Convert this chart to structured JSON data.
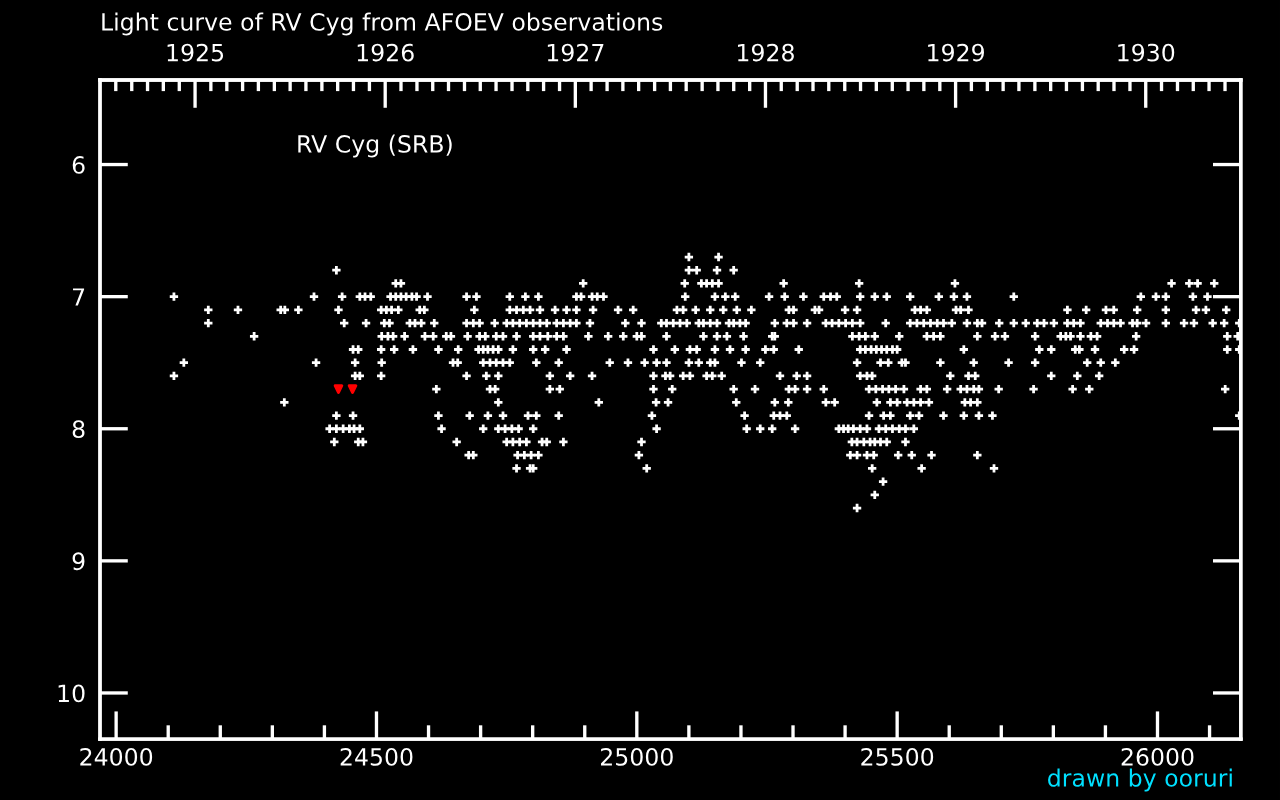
{
  "chart_data": {
    "type": "scatter",
    "title": "Light curve of RV Cyg from AFOEV observations",
    "annotations": [
      "RV Cyg (SRB)",
      "drawn by ooruri"
    ],
    "marker": "cross",
    "xlim": [
      23969,
      26160
    ],
    "ylim": [
      10.35,
      5.36
    ],
    "xticks": [
      24000,
      {
        "value": 24100,
        "label": null
      },
      {
        "value": 24200,
        "label": null
      },
      {
        "value": 24300,
        "label": null
      },
      {
        "value": 24400,
        "label": null
      },
      24500,
      {
        "value": 24600,
        "label": null
      },
      {
        "value": 24700,
        "label": null
      },
      {
        "value": 24800,
        "label": null
      },
      {
        "value": 24900,
        "label": null
      },
      25000,
      {
        "value": 25100,
        "label": null
      },
      {
        "value": 25200,
        "label": null
      },
      {
        "value": 25300,
        "label": null
      },
      {
        "value": 25400,
        "label": null
      },
      25500,
      {
        "value": 25600,
        "label": null
      },
      {
        "value": 25700,
        "label": null
      },
      {
        "value": 25800,
        "label": null
      },
      {
        "value": 25900,
        "label": null
      },
      26000,
      {
        "value": 26100,
        "label": null
      }
    ],
    "yticks": [
      6,
      7,
      8,
      9,
      10
    ],
    "x2lim": [
      1924.5,
      1930.5
    ],
    "x2ticks": [
      {
        "value": 1924.583,
        "label": null
      },
      {
        "value": 1924.667,
        "label": null
      },
      {
        "value": 1924.75,
        "label": null
      },
      {
        "value": 1924.833,
        "label": null
      },
      {
        "value": 1924.917,
        "label": null
      },
      1925,
      {
        "value": 1925.083,
        "label": null
      },
      {
        "value": 1925.167,
        "label": null
      },
      {
        "value": 1925.25,
        "label": null
      },
      {
        "value": 1925.333,
        "label": null
      },
      {
        "value": 1925.417,
        "label": null
      },
      {
        "value": 1925.5,
        "label": null
      },
      {
        "value": 1925.583,
        "label": null
      },
      {
        "value": 1925.667,
        "label": null
      },
      {
        "value": 1925.75,
        "label": null
      },
      {
        "value": 1925.833,
        "label": null
      },
      {
        "value": 1925.917,
        "label": null
      },
      1926,
      {
        "value": 1926.083,
        "label": null
      },
      {
        "value": 1926.167,
        "label": null
      },
      {
        "value": 1926.25,
        "label": null
      },
      {
        "value": 1926.333,
        "label": null
      },
      {
        "value": 1926.417,
        "label": null
      },
      {
        "value": 1926.5,
        "label": null
      },
      {
        "value": 1926.583,
        "label": null
      },
      {
        "value": 1926.667,
        "label": null
      },
      {
        "value": 1926.75,
        "label": null
      },
      {
        "value": 1926.833,
        "label": null
      },
      {
        "value": 1926.917,
        "label": null
      },
      1927,
      {
        "value": 1927.083,
        "label": null
      },
      {
        "value": 1927.167,
        "label": null
      },
      {
        "value": 1927.25,
        "label": null
      },
      {
        "value": 1927.333,
        "label": null
      },
      {
        "value": 1927.417,
        "label": null
      },
      {
        "value": 1927.5,
        "label": null
      },
      {
        "value": 1927.583,
        "label": null
      },
      {
        "value": 1927.667,
        "label": null
      },
      {
        "value": 1927.75,
        "label": null
      },
      {
        "value": 1927.833,
        "label": null
      },
      {
        "value": 1927.917,
        "label": null
      },
      1928,
      {
        "value": 1928.083,
        "label": null
      },
      {
        "value": 1928.167,
        "label": null
      },
      {
        "value": 1928.25,
        "label": null
      },
      {
        "value": 1928.333,
        "label": null
      },
      {
        "value": 1928.417,
        "label": null
      },
      {
        "value": 1928.5,
        "label": null
      },
      {
        "value": 1928.583,
        "label": null
      },
      {
        "value": 1928.667,
        "label": null
      },
      {
        "value": 1928.75,
        "label": null
      },
      {
        "value": 1928.833,
        "label": null
      },
      {
        "value": 1928.917,
        "label": null
      },
      1929,
      {
        "value": 1929.083,
        "label": null
      },
      {
        "value": 1929.167,
        "label": null
      },
      {
        "value": 1929.25,
        "label": null
      },
      {
        "value": 1929.333,
        "label": null
      },
      {
        "value": 1929.417,
        "label": null
      },
      {
        "value": 1929.5,
        "label": null
      },
      {
        "value": 1929.583,
        "label": null
      },
      {
        "value": 1929.667,
        "label": null
      },
      {
        "value": 1929.75,
        "label": null
      },
      {
        "value": 1929.833,
        "label": null
      },
      {
        "value": 1929.917,
        "label": null
      },
      1930,
      {
        "value": 1930.083,
        "label": null
      },
      {
        "value": 1930.167,
        "label": null
      },
      {
        "value": 1930.25,
        "label": null
      },
      {
        "value": 1930.333,
        "label": null
      },
      {
        "value": 1930.417,
        "label": null
      }
    ],
    "series": [
      {
        "color": "#ffffff",
        "x": [
          25100,
          25157,
          24423,
          25100,
          25115,
          25154,
          25186,
          24537,
          24547,
          24897,
          25092,
          25124,
          25134,
          25145,
          25157,
          25282,
          25427,
          25611,
          26027,
          26061,
          26077,
          26109,
          24111,
          24380,
          24434,
          24468,
          24478,
          24489,
          24527,
          24537,
          24547,
          24557,
          24568,
          24577,
          24598,
          24673,
          24692,
          24756,
          24786,
          24811,
          24884,
          24893,
          24914,
          24924,
          24936,
          25093,
          25150,
          25170,
          25189,
          25254,
          25284,
          25320,
          25359,
          25372,
          25384,
          25429,
          25457,
          25480,
          25525,
          25580,
          25609,
          25634,
          25724,
          25968,
          25997,
          26016,
          26068,
          26096,
          24177,
          24234,
          24316,
          24324,
          24350,
          24427,
          24509,
          24519,
          24529,
          24542,
          24583,
          24592,
          24688,
          24756,
          24769,
          24782,
          24795,
          24814,
          24843,
          24865,
          24884,
          24916,
          24964,
          24993,
          25077,
          25089,
          25113,
          25141,
          25166,
          25192,
          25220,
          25292,
          25301,
          25342,
          25350,
          25400,
          25423,
          25534,
          25545,
          25557,
          25613,
          25622,
          25637,
          25827,
          25863,
          25901,
          25916,
          25961,
          26016,
          26074,
          26093,
          26132,
          24177,
          24438,
          24480,
          24515,
          24525,
          24564,
          24574,
          24586,
          24611,
          24673,
          24686,
          24698,
          24727,
          24750,
          24762,
          24775,
          24788,
          24801,
          24814,
          24827,
          24846,
          24859,
          24872,
          24884,
          24910,
          24978,
          25009,
          25047,
          25057,
          25070,
          25083,
          25096,
          25119,
          25128,
          25141,
          25154,
          25177,
          25186,
          25198,
          25209,
          25265,
          25288,
          25301,
          25327,
          25363,
          25375,
          25388,
          25401,
          25414,
          25429,
          25478,
          25525,
          25538,
          25551,
          25564,
          25577,
          25589,
          25605,
          25634,
          25654,
          25663,
          25696,
          25724,
          25747,
          25769,
          25782,
          25801,
          25827,
          25839,
          25852,
          25891,
          25904,
          25916,
          25929,
          25952,
          25961,
          25978,
          26016,
          26051,
          26070,
          26106,
          26128,
          26157,
          24265,
          24510,
          24522,
          24532,
          24554,
          24593,
          24609,
          24634,
          24643,
          24675,
          24698,
          24709,
          24730,
          24743,
          24769,
          24801,
          24814,
          24829,
          24846,
          24859,
          24907,
          24945,
          24974,
          25000,
          25009,
          25057,
          25128,
          25154,
          25173,
          25205,
          25260,
          25265,
          25414,
          25427,
          25439,
          25457,
          25504,
          25557,
          25570,
          25583,
          25654,
          25688,
          25707,
          25765,
          25814,
          25824,
          25833,
          25852,
          25872,
          25884,
          25959,
          26134,
          26154,
          24455,
          24465,
          24509,
          24534,
          24570,
          24619,
          24657,
          24696,
          24705,
          24714,
          24724,
          24734,
          24762,
          24801,
          24824,
          24865,
          25032,
          25073,
          25102,
          25115,
          25150,
          25179,
          25209,
          25247,
          25263,
          25311,
          25429,
          25439,
          25450,
          25460,
          25470,
          25480,
          25491,
          25500,
          25628,
          25773,
          25796,
          25842,
          25850,
          25880,
          25936,
          25955,
          26134,
          26157,
          24130,
          24384,
          24459,
          24510,
          24647,
          24656,
          24705,
          24718,
          24730,
          24743,
          24756,
          24807,
          24850,
          24948,
          24983,
          25015,
          25038,
          25057,
          25100,
          25119,
          25141,
          25150,
          25201,
          25237,
          25423,
          25468,
          25483,
          25509,
          25516,
          25583,
          25647,
          25714,
          25765,
          25865,
          25891,
          25919,
          24111,
          24459,
          24468,
          24509,
          24673,
          24711,
          24734,
          24833,
          24872,
          24914,
          25032,
          25055,
          25064,
          25089,
          25102,
          25134,
          25145,
          25163,
          25275,
          25307,
          25327,
          25429,
          25442,
          25452,
          25602,
          25637,
          25650,
          25796,
          25846,
          25888,
          24615,
          24718,
          24728,
          24833,
          24852,
          25032,
          25068,
          25186,
          25227,
          25292,
          25304,
          25327,
          25359,
          25446,
          25459,
          25472,
          25484,
          25497,
          25513,
          25545,
          25557,
          25596,
          25622,
          25634,
          25647,
          25657,
          25695,
          25762,
          25837,
          25869,
          26130,
          24323,
          24734,
          24927,
          25037,
          25060,
          25191,
          25265,
          25291,
          25363,
          25380,
          25461,
          25487,
          25500,
          25519,
          25532,
          25545,
          25561,
          25630,
          25641,
          25654,
          24423,
          24455,
          24619,
          24679,
          24714,
          24743,
          24791,
          24807,
          24850,
          25029,
          25207,
          25263,
          25275,
          25288,
          25446,
          25474,
          25487,
          25525,
          25542,
          25589,
          25628,
          25657,
          25683,
          26157,
          24410,
          24423,
          24436,
          24448,
          24457,
          24468,
          24625,
          24705,
          24734,
          24747,
          24760,
          24773,
          24801,
          25038,
          25211,
          25237,
          25260,
          25304,
          25388,
          25397,
          25406,
          25416,
          25429,
          25442,
          25465,
          25478,
          25491,
          25504,
          25516,
          25532,
          24419,
          24465,
          24474,
          24654,
          24750,
          24762,
          24775,
          24788,
          24818,
          24827,
          24859,
          25009,
          25413,
          25423,
          25436,
          25448,
          25457,
          25468,
          25480,
          25516,
          24677,
          24686,
          24771,
          24784,
          24797,
          24811,
          25004,
          25410,
          25423,
          25442,
          25455,
          25502,
          25528,
          25566,
          25654,
          24769,
          24795,
          24801,
          25019,
          25452,
          25547,
          25686,
          25473,
          25457,
          25423
        ],
        "values": [
          6.7,
          6.7,
          6.8,
          6.8,
          6.8,
          6.8,
          6.8,
          6.9,
          6.9,
          6.9,
          6.9,
          6.9,
          6.9,
          6.9,
          6.9,
          6.9,
          6.9,
          6.9,
          6.9,
          6.9,
          6.9,
          6.9,
          7.0,
          7.0,
          7.0,
          7.0,
          7.0,
          7.0,
          7.0,
          7.0,
          7.0,
          7.0,
          7.0,
          7.0,
          7.0,
          7.0,
          7.0,
          7.0,
          7.0,
          7.0,
          7.0,
          7.0,
          7.0,
          7.0,
          7.0,
          7.0,
          7.0,
          7.0,
          7.0,
          7.0,
          7.0,
          7.0,
          7.0,
          7.0,
          7.0,
          7.0,
          7.0,
          7.0,
          7.0,
          7.0,
          7.0,
          7.0,
          7.0,
          7.0,
          7.0,
          7.0,
          7.0,
          7.0,
          7.1,
          7.1,
          7.1,
          7.1,
          7.1,
          7.1,
          7.1,
          7.1,
          7.1,
          7.1,
          7.1,
          7.1,
          7.1,
          7.1,
          7.1,
          7.1,
          7.1,
          7.1,
          7.1,
          7.1,
          7.1,
          7.1,
          7.1,
          7.1,
          7.1,
          7.1,
          7.1,
          7.1,
          7.1,
          7.1,
          7.1,
          7.1,
          7.1,
          7.1,
          7.1,
          7.1,
          7.1,
          7.1,
          7.1,
          7.1,
          7.1,
          7.1,
          7.1,
          7.1,
          7.1,
          7.1,
          7.1,
          7.1,
          7.1,
          7.1,
          7.1,
          7.1,
          7.2,
          7.2,
          7.2,
          7.2,
          7.2,
          7.2,
          7.2,
          7.2,
          7.2,
          7.2,
          7.2,
          7.2,
          7.2,
          7.2,
          7.2,
          7.2,
          7.2,
          7.2,
          7.2,
          7.2,
          7.2,
          7.2,
          7.2,
          7.2,
          7.2,
          7.2,
          7.2,
          7.2,
          7.2,
          7.2,
          7.2,
          7.2,
          7.2,
          7.2,
          7.2,
          7.2,
          7.2,
          7.2,
          7.2,
          7.2,
          7.2,
          7.2,
          7.2,
          7.2,
          7.2,
          7.2,
          7.2,
          7.2,
          7.2,
          7.2,
          7.2,
          7.2,
          7.2,
          7.2,
          7.2,
          7.2,
          7.2,
          7.2,
          7.2,
          7.2,
          7.2,
          7.2,
          7.2,
          7.2,
          7.2,
          7.2,
          7.2,
          7.2,
          7.2,
          7.2,
          7.2,
          7.2,
          7.2,
          7.2,
          7.2,
          7.2,
          7.2,
          7.2,
          7.2,
          7.2,
          7.2,
          7.2,
          7.2,
          7.3,
          7.3,
          7.3,
          7.3,
          7.3,
          7.3,
          7.3,
          7.3,
          7.3,
          7.3,
          7.3,
          7.3,
          7.3,
          7.3,
          7.3,
          7.3,
          7.3,
          7.3,
          7.3,
          7.3,
          7.3,
          7.3,
          7.3,
          7.3,
          7.3,
          7.3,
          7.3,
          7.3,
          7.3,
          7.3,
          7.3,
          7.3,
          7.3,
          7.3,
          7.3,
          7.3,
          7.3,
          7.3,
          7.3,
          7.3,
          7.3,
          7.3,
          7.3,
          7.3,
          7.3,
          7.3,
          7.3,
          7.3,
          7.3,
          7.3,
          7.3,
          7.3,
          7.3,
          7.4,
          7.4,
          7.4,
          7.4,
          7.4,
          7.4,
          7.4,
          7.4,
          7.4,
          7.4,
          7.4,
          7.4,
          7.4,
          7.4,
          7.4,
          7.4,
          7.4,
          7.4,
          7.4,
          7.4,
          7.4,
          7.4,
          7.4,
          7.4,
          7.4,
          7.4,
          7.4,
          7.4,
          7.4,
          7.4,
          7.4,
          7.4,
          7.4,
          7.4,
          7.4,
          7.4,
          7.4,
          7.4,
          7.4,
          7.4,
          7.4,
          7.4,
          7.4,
          7.4,
          7.5,
          7.5,
          7.5,
          7.5,
          7.5,
          7.5,
          7.5,
          7.5,
          7.5,
          7.5,
          7.5,
          7.5,
          7.5,
          7.5,
          7.5,
          7.5,
          7.5,
          7.5,
          7.5,
          7.5,
          7.5,
          7.5,
          7.5,
          7.5,
          7.5,
          7.5,
          7.5,
          7.5,
          7.5,
          7.5,
          7.5,
          7.5,
          7.5,
          7.5,
          7.5,
          7.5,
          7.6,
          7.6,
          7.6,
          7.6,
          7.6,
          7.6,
          7.6,
          7.6,
          7.6,
          7.6,
          7.6,
          7.6,
          7.6,
          7.6,
          7.6,
          7.6,
          7.6,
          7.6,
          7.6,
          7.6,
          7.6,
          7.6,
          7.6,
          7.6,
          7.6,
          7.6,
          7.6,
          7.6,
          7.6,
          7.6,
          7.7,
          7.7,
          7.7,
          7.7,
          7.7,
          7.7,
          7.7,
          7.7,
          7.7,
          7.7,
          7.7,
          7.7,
          7.7,
          7.7,
          7.7,
          7.7,
          7.7,
          7.7,
          7.7,
          7.7,
          7.7,
          7.7,
          7.7,
          7.7,
          7.7,
          7.7,
          7.7,
          7.7,
          7.7,
          7.7,
          7.7,
          7.8,
          7.8,
          7.8,
          7.8,
          7.8,
          7.8,
          7.8,
          7.8,
          7.8,
          7.8,
          7.8,
          7.8,
          7.8,
          7.8,
          7.8,
          7.8,
          7.8,
          7.8,
          7.8,
          7.8,
          7.9,
          7.9,
          7.9,
          7.9,
          7.9,
          7.9,
          7.9,
          7.9,
          7.9,
          7.9,
          7.9,
          7.9,
          7.9,
          7.9,
          7.9,
          7.9,
          7.9,
          7.9,
          7.9,
          7.9,
          7.9,
          7.9,
          7.9,
          7.9,
          8.0,
          8.0,
          8.0,
          8.0,
          8.0,
          8.0,
          8.0,
          8.0,
          8.0,
          8.0,
          8.0,
          8.0,
          8.0,
          8.0,
          8.0,
          8.0,
          8.0,
          8.0,
          8.0,
          8.0,
          8.0,
          8.0,
          8.0,
          8.0,
          8.0,
          8.0,
          8.0,
          8.0,
          8.0,
          8.0,
          8.1,
          8.1,
          8.1,
          8.1,
          8.1,
          8.1,
          8.1,
          8.1,
          8.1,
          8.1,
          8.1,
          8.1,
          8.1,
          8.1,
          8.1,
          8.1,
          8.1,
          8.1,
          8.1,
          8.1,
          8.2,
          8.2,
          8.2,
          8.2,
          8.2,
          8.2,
          8.2,
          8.2,
          8.2,
          8.2,
          8.2,
          8.2,
          8.2,
          8.2,
          8.2,
          8.3,
          8.3,
          8.3,
          8.3,
          8.3,
          8.3,
          8.3,
          8.4,
          8.5,
          8.6
        ]
      },
      {
        "color": "#ff0000",
        "marker": "triangle",
        "x": [
          24427,
          24454
        ],
        "values": [
          7.7,
          7.7
        ]
      }
    ]
  }
}
